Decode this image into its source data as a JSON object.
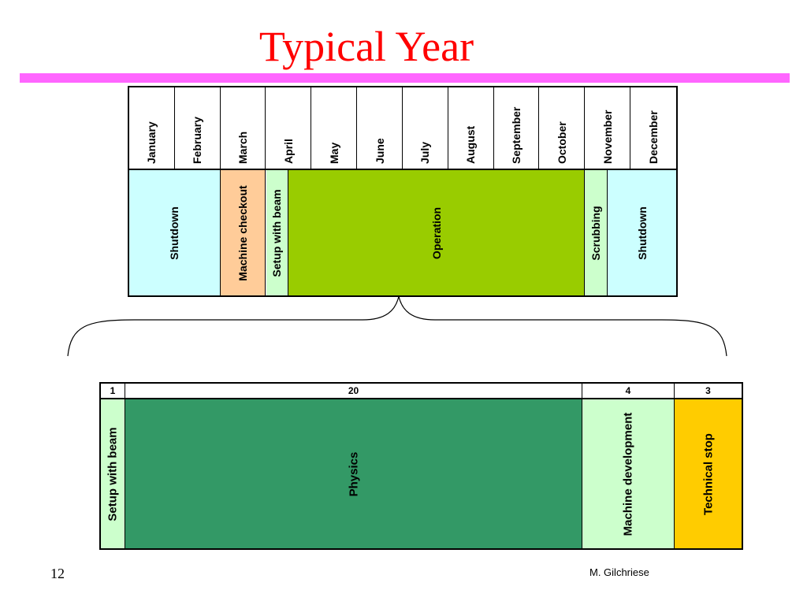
{
  "title": "Typical Year",
  "colors": {
    "title": "#ff0000",
    "rule": "#ff66ff",
    "shutdown": "#ccffff",
    "machine_checkout": "#ffcc99",
    "setup": "#ccffcc",
    "operation": "#99cc00",
    "scrubbing": "#ccffcc",
    "physics": "#339966",
    "machine_development": "#ccffcc",
    "technical_stop": "#ffcc00"
  },
  "months": [
    "January",
    "February",
    "March",
    "April",
    "May",
    "June",
    "July",
    "August",
    "September",
    "October",
    "November",
    "December"
  ],
  "year_phases": [
    {
      "label": "Shutdown",
      "months": 2,
      "color": "#ccffff"
    },
    {
      "label": "Machine checkout",
      "months": 1,
      "color": "#ffcc99"
    },
    {
      "label": "Setup with beam",
      "months": 0.5,
      "color": "#ccffcc"
    },
    {
      "label": "Operation",
      "months": 6.5,
      "color": "#99cc00"
    },
    {
      "label": "Scrubbing",
      "months": 0.5,
      "color": "#ccffcc"
    },
    {
      "label": "Shutdown",
      "months": 1.5,
      "color": "#ccffff"
    }
  ],
  "operation_breakdown": [
    {
      "weeks": "1",
      "label": "Setup with beam",
      "value": 1,
      "color": "#ccffcc"
    },
    {
      "weeks": "20",
      "label": "Physics",
      "value": 20,
      "color": "#339966"
    },
    {
      "weeks": "4",
      "label": "Machine development",
      "value": 4,
      "color": "#ccffcc"
    },
    {
      "weeks": "3",
      "label": "Technical stop",
      "value": 3,
      "color": "#ffcc00"
    }
  ],
  "footer": {
    "page_number": "12",
    "author": "M. Gilchriese"
  }
}
